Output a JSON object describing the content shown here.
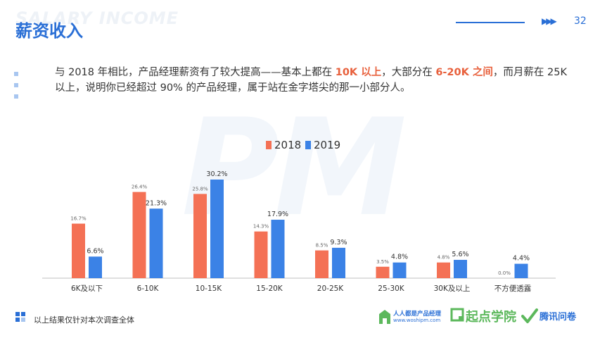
{
  "header": {
    "bg_word": "SALARY INCOME",
    "title": "薪资收入",
    "page_arrows": "▶▶▶",
    "page_number": "32"
  },
  "description": {
    "part1": "与 2018 年相比，产品经理薪资有了较大提高——基本上都在 ",
    "hl1": "10K 以上",
    "part2": "，大部分在 ",
    "hl2": "6-20K 之间",
    "part3": "，而月薪在 25K 以上，说明你已经超过 90% 的产品经理，属于站在金字塔尖的那一小部分人。"
  },
  "watermark": "PM",
  "chart_data": {
    "type": "bar",
    "categories": [
      "6K及以下",
      "6-10K",
      "10-15K",
      "15-20K",
      "20-25K",
      "25-30K",
      "30K及以上",
      "不方便透露"
    ],
    "series": [
      {
        "name": "2018",
        "color": "#f47155",
        "values": [
          16.7,
          26.4,
          25.8,
          14.3,
          8.5,
          3.5,
          4.8,
          0.0
        ],
        "labels": [
          "16.7%",
          "26.4%",
          "25.8%",
          "14.3%",
          "8.5%",
          "3.5%",
          "4.8%",
          "0.0%"
        ]
      },
      {
        "name": "2019",
        "color": "#3b82e6",
        "values": [
          6.6,
          21.3,
          30.2,
          17.9,
          9.3,
          4.8,
          5.6,
          4.4
        ],
        "labels": [
          "6.6%",
          "21.3%",
          "30.2%",
          "17.9%",
          "9.3%",
          "4.8%",
          "5.6%",
          "4.4%"
        ]
      }
    ],
    "ylim": [
      0,
      30.2
    ],
    "legend_position": "top-center",
    "title": "",
    "xlabel": "",
    "ylabel": ""
  },
  "footer": {
    "note": "以上结果仅针对本次调查全体",
    "logo1_title": "人人都是产品经理",
    "logo1_url": "www.woshipm.com",
    "logo2_title": "起点学院",
    "logo3_title": "腾讯问卷"
  }
}
